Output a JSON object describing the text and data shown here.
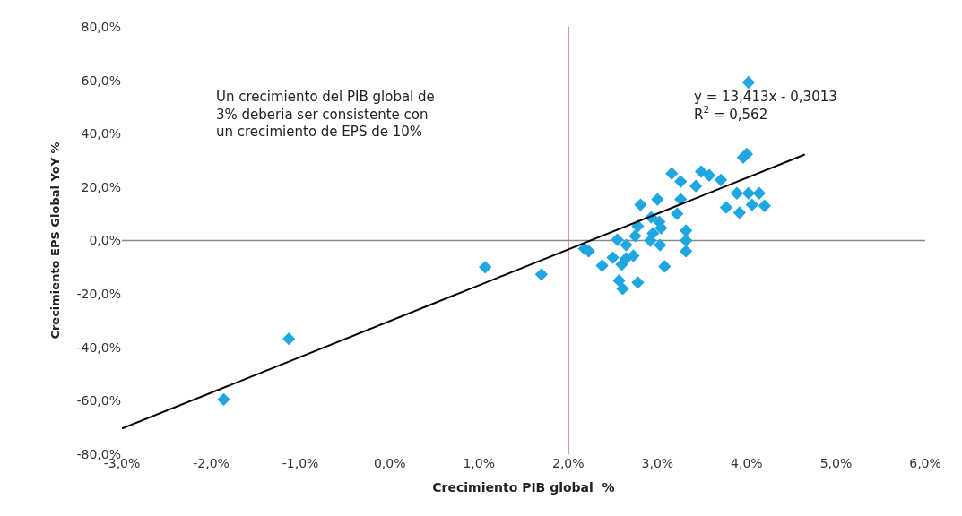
{
  "chart_data": {
    "type": "scatter",
    "xlabel": "Crecimiento PIB global  %",
    "ylabel": "Crecimiento EPS Global YoY %",
    "x": [
      3.96,
      4.0,
      3.16,
      3.49,
      3.58,
      3.71,
      3.26,
      3.43,
      2.81,
      3.0,
      3.26,
      3.89,
      4.02,
      4.14,
      3.77,
      3.92,
      4.06,
      4.2,
      3.22,
      2.93,
      3.02,
      2.78,
      3.04,
      3.32,
      2.75,
      2.95,
      2.92,
      2.55,
      3.32,
      2.65,
      3.03,
      2.18,
      2.23,
      3.32,
      2.73,
      2.5,
      2.65,
      2.38,
      2.6,
      3.08,
      2.57,
      2.61,
      2.78,
      4.02,
      -1.86,
      -1.13,
      1.07,
      1.7
    ],
    "series": [
      {
        "color": "#1ea7e1",
        "marker": "diamond",
        "values": [
          31.1,
          32.4,
          25.1,
          25.8,
          24.4,
          22.7,
          22.1,
          20.4,
          13.4,
          15.4,
          15.4,
          17.7,
          17.7,
          17.7,
          12.4,
          10.4,
          13.4,
          13.0,
          10.0,
          8.7,
          7.0,
          5.4,
          4.7,
          3.7,
          1.7,
          2.7,
          0.0,
          0.3,
          0.0,
          -1.7,
          -1.7,
          -3.0,
          -4.0,
          -4.0,
          -5.7,
          -6.4,
          -6.7,
          -9.4,
          -9.0,
          -9.7,
          -15.0,
          -18.1,
          -15.7,
          59.2,
          -59.5,
          -36.8,
          -10.0,
          -12.7
        ]
      },
      {
        "type": "line",
        "color": "#000000",
        "marker": "none",
        "line_style": "solid",
        "x": [
          -3.0,
          4.65
        ],
        "values": [
          -70.4,
          32.2
        ]
      }
    ],
    "xlim": [
      -3.0,
      6.0
    ],
    "ylim": [
      -80.0,
      80.0
    ],
    "xticks": [
      {
        "value": -3,
        "label": "-3,0%"
      },
      {
        "value": -2,
        "label": "-2,0%"
      },
      {
        "value": -1,
        "label": "-1,0%"
      },
      {
        "value": 0,
        "label": "0,0%"
      },
      {
        "value": 1,
        "label": "1,0%"
      },
      {
        "value": 2,
        "label": "2,0%"
      },
      {
        "value": 3,
        "label": "3,0%"
      },
      {
        "value": 4,
        "label": "4,0%"
      },
      {
        "value": 5,
        "label": "5,0%"
      },
      {
        "value": 6,
        "label": "6,0%"
      }
    ],
    "yticks": [
      {
        "value": -80,
        "label": "-80,0%"
      },
      {
        "value": -60,
        "label": "-60,0%"
      },
      {
        "value": -40,
        "label": "-40,0%"
      },
      {
        "value": -20,
        "label": "-20,0%"
      },
      {
        "value": 0,
        "label": "0,0%"
      },
      {
        "value": 20,
        "label": "20,0%"
      },
      {
        "value": 40,
        "label": "40,0%"
      },
      {
        "value": 60,
        "label": "60,0%"
      },
      {
        "value": 80,
        "label": "80,0%"
      }
    ],
    "ref_lines": [
      {
        "axis": "x",
        "value": 2.0,
        "color": "#c0393b",
        "line_style": "solid"
      },
      {
        "axis": "y",
        "value": 0.0,
        "color": "#888888",
        "line_style": "solid"
      }
    ],
    "annotations": [
      "Un crecimiento del PIB global de\n3% deberia ser consistente con\nun crecimiento de EPS de 10%",
      "y = 13,413x - 0,3013\nR$^{2}$ = 0,562"
    ],
    "grid": false,
    "legend": false
  }
}
